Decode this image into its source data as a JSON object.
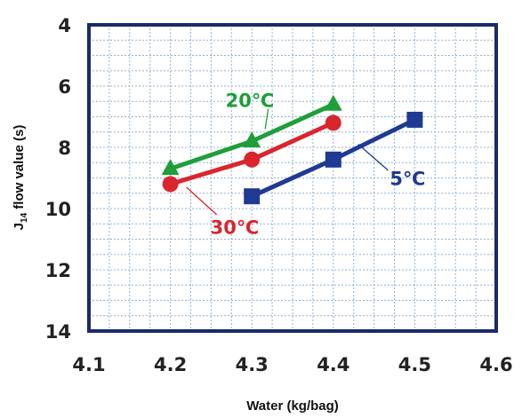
{
  "chart_data": {
    "type": "line",
    "title": "",
    "xlabel": "Water (kg/bag)",
    "ylabel_main": "J",
    "ylabel_sub": "14",
    "ylabel_rest": " flow value (s)",
    "xlim": [
      4.1,
      4.6
    ],
    "ylim": [
      4,
      14
    ],
    "y_inverted": true,
    "x_ticks": [
      "4.1",
      "4.2",
      "4.3",
      "4.4",
      "4.5",
      "4.6"
    ],
    "y_ticks": [
      "4",
      "6",
      "8",
      "10",
      "12",
      "14"
    ],
    "grid": true,
    "series": [
      {
        "name": "20℃",
        "color": "#1f9e3a",
        "marker": "triangle",
        "x": [
          4.2,
          4.3,
          4.4
        ],
        "y": [
          8.7,
          7.8,
          6.6
        ]
      },
      {
        "name": "30℃",
        "color": "#d9262e",
        "marker": "circle",
        "x": [
          4.2,
          4.3,
          4.4
        ],
        "y": [
          9.2,
          8.4,
          7.2
        ]
      },
      {
        "name": "5℃",
        "color": "#1f3a93",
        "marker": "square",
        "x": [
          4.3,
          4.4,
          4.5
        ],
        "y": [
          9.6,
          8.4,
          7.1
        ]
      }
    ]
  }
}
